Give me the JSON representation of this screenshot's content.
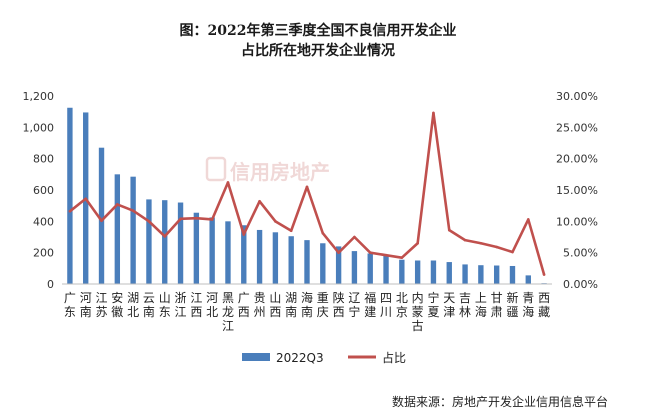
{
  "chart_data": {
    "type": "bar",
    "title_lines": [
      "图：2022年第三季度全国不良信用开发企业",
      "占比所在地开发企业情况"
    ],
    "watermark": "信用房地产",
    "source": "数据来源：房地产开发企业信用信息平台",
    "categories": [
      [
        "广",
        "东"
      ],
      [
        "河",
        "南"
      ],
      [
        "江",
        "苏"
      ],
      [
        "安",
        "徽"
      ],
      [
        "湖",
        "北"
      ],
      [
        "云",
        "南"
      ],
      [
        "山",
        "东"
      ],
      [
        "浙",
        "江"
      ],
      [
        "江",
        "西"
      ],
      [
        "河",
        "北"
      ],
      [
        "黑",
        "龙",
        "江"
      ],
      [
        "广",
        "西"
      ],
      [
        "贵",
        "州"
      ],
      [
        "山",
        "西"
      ],
      [
        "湖",
        "南"
      ],
      [
        "海",
        "南"
      ],
      [
        "重",
        "庆"
      ],
      [
        "陕",
        "西"
      ],
      [
        "辽",
        "宁"
      ],
      [
        "福",
        "建"
      ],
      [
        "四",
        "川"
      ],
      [
        "北",
        "京"
      ],
      [
        "内",
        "蒙",
        "古"
      ],
      [
        "宁",
        "夏"
      ],
      [
        "天",
        "津"
      ],
      [
        "吉",
        "林"
      ],
      [
        "上",
        "海"
      ],
      [
        "甘",
        "肃"
      ],
      [
        "新",
        "疆"
      ],
      [
        "青",
        "海"
      ],
      [
        "西",
        "藏"
      ]
    ],
    "series": [
      {
        "name": "2022Q3",
        "kind": "bar",
        "color": "#4a7ebb",
        "axis": "left",
        "values": [
          1125,
          1095,
          870,
          700,
          685,
          540,
          535,
          520,
          455,
          425,
          400,
          375,
          345,
          330,
          305,
          280,
          260,
          240,
          210,
          195,
          185,
          155,
          150,
          150,
          140,
          125,
          120,
          118,
          115,
          55,
          5
        ]
      },
      {
        "name": "占比",
        "kind": "line",
        "color": "#c0504d",
        "axis": "right",
        "values": [
          11.6,
          13.6,
          10.1,
          12.7,
          11.7,
          10.0,
          7.6,
          10.4,
          10.5,
          10.3,
          16.2,
          7.9,
          13.2,
          10.0,
          8.5,
          15.5,
          8.1,
          5.0,
          7.5,
          5.0,
          4.6,
          4.2,
          6.5,
          27.3,
          8.6,
          7.0,
          6.5,
          5.9,
          5.1,
          10.3,
          1.5
        ]
      }
    ],
    "y_left": {
      "min": 0,
      "max": 1200,
      "ticks": [
        "0",
        "200",
        "400",
        "600",
        "800",
        "1,000",
        "1,200"
      ]
    },
    "y_right": {
      "min": 0,
      "max": 30,
      "ticks": [
        "0.00%",
        "5.00%",
        "10.00%",
        "15.00%",
        "20.00%",
        "25.00%",
        "30.00%"
      ]
    },
    "grid": false,
    "legend_position": "bottom"
  }
}
